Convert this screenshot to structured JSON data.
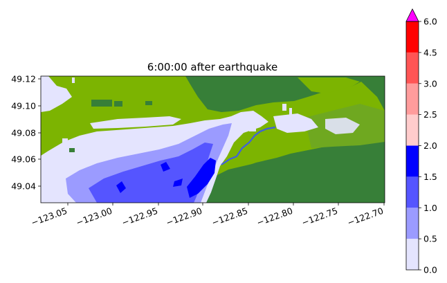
{
  "title": "6:00:00 after earthquake",
  "axes": {
    "x_ticks": [
      "−123.05",
      "−123.00",
      "−122.95",
      "−122.90",
      "−122.85",
      "−122.80",
      "−122.75",
      "−122.70"
    ],
    "y_ticks": [
      "49.12",
      "49.10",
      "49.08",
      "49.06",
      "49.04"
    ]
  },
  "colorbar": {
    "ticks": [
      "0.0",
      "0.5",
      "1.0",
      "1.5",
      "2.0",
      "2.5",
      "3.0",
      "4.5",
      "6.0"
    ],
    "levels": [
      0.0,
      0.5,
      1.0,
      1.5,
      2.0,
      2.5,
      3.0,
      4.5,
      6.0
    ],
    "colors": [
      "#e4e4fe",
      "#9b9bff",
      "#5555ff",
      "#0000ff",
      "#ffcccc",
      "#ff9c9c",
      "#ff5555",
      "#ff0000"
    ],
    "extend_color": "#ff00ff",
    "extend": "max"
  },
  "colors": {
    "land_dark": "#377f38",
    "land_light": "#7cb401",
    "water_lightest": "#e4e4fe",
    "water_light": "#9b9bff",
    "water_mid": "#5555ff",
    "water_dark": "#0000ff"
  }
}
